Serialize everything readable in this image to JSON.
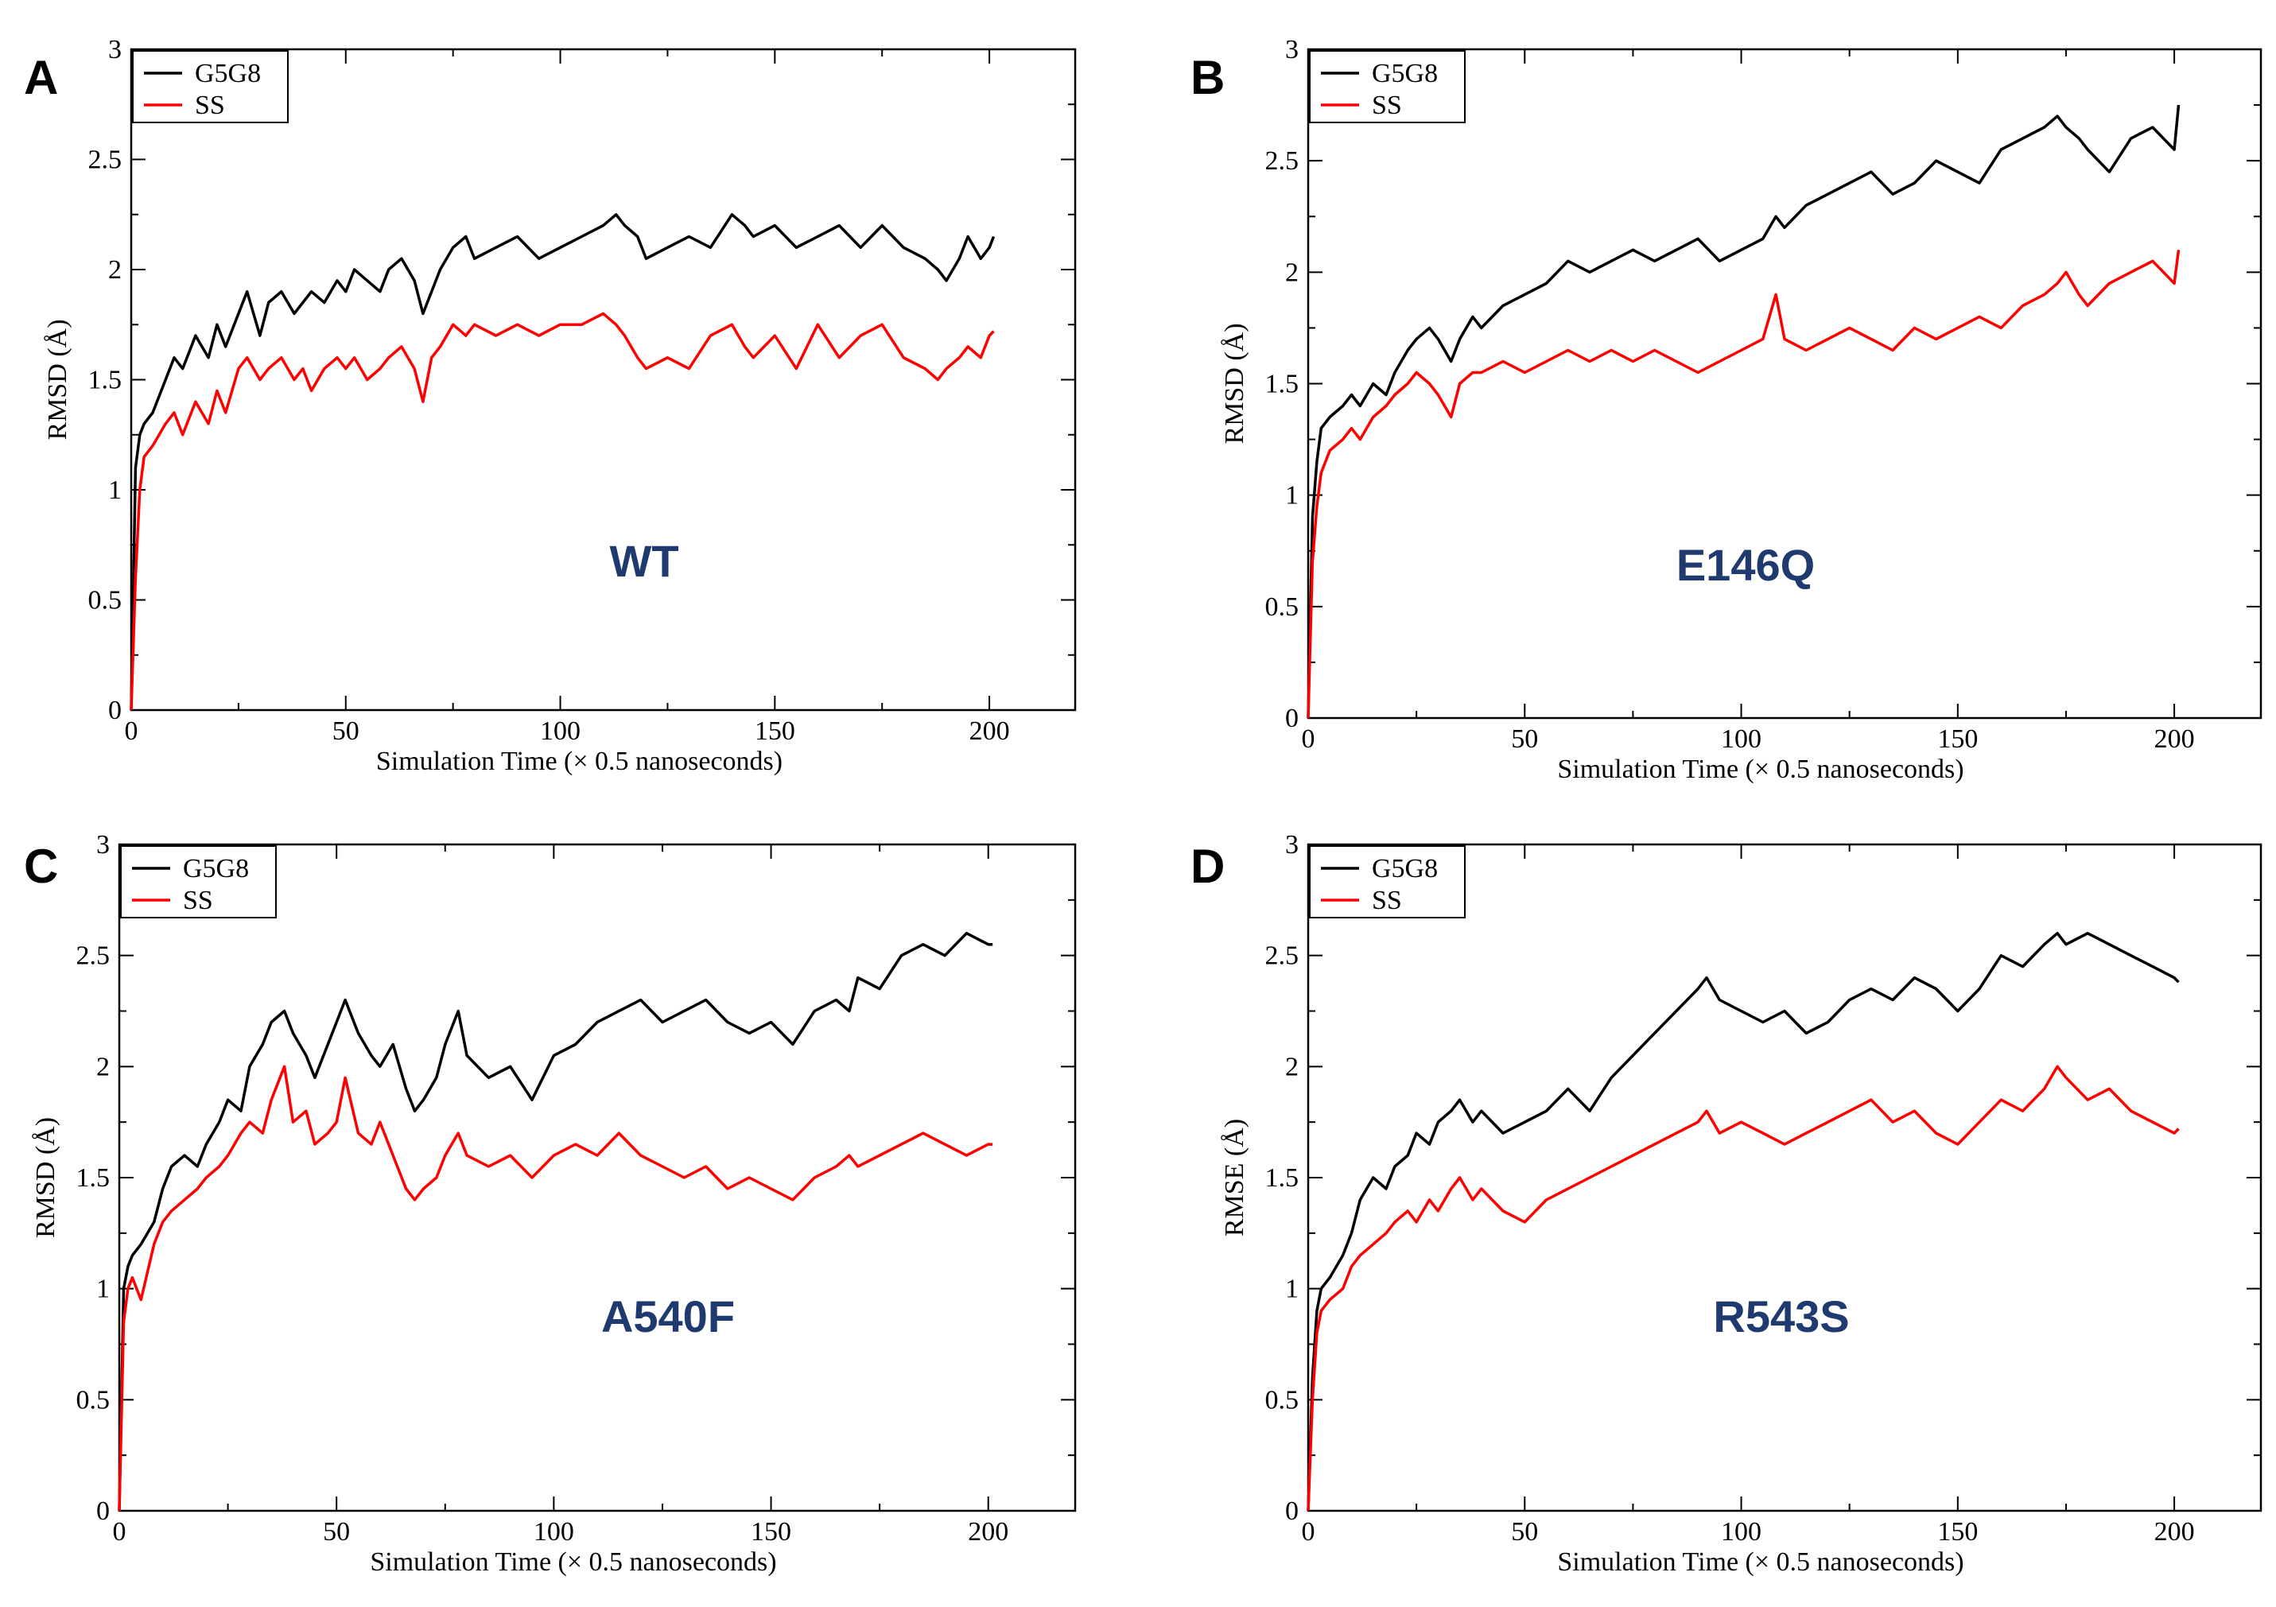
{
  "chart_data": [
    {
      "type": "line",
      "panel_letter": "A",
      "annotation": "WT",
      "xlabel": "Simulation Time  (× 0.5 nanoseconds)",
      "ylabel": "RMSD (Å)",
      "xlim": [
        0,
        220
      ],
      "ylim": [
        0,
        3
      ],
      "xticks": [
        "0",
        "50",
        "100",
        "150",
        "200"
      ],
      "yticks": [
        "0",
        "0.5",
        "1",
        "1.5",
        "2",
        "2.5",
        "3"
      ],
      "legend": {
        "position": "top-left",
        "entries": [
          "G5G8",
          "SS"
        ]
      },
      "series": [
        {
          "name": "G5G8",
          "color": "#000000",
          "x": [
            0,
            1,
            2,
            3,
            5,
            8,
            10,
            12,
            15,
            18,
            20,
            22,
            25,
            27,
            30,
            32,
            35,
            38,
            40,
            42,
            45,
            48,
            50,
            52,
            55,
            58,
            60,
            63,
            66,
            68,
            70,
            72,
            75,
            78,
            80,
            85,
            90,
            95,
            100,
            105,
            110,
            113,
            115,
            118,
            120,
            125,
            130,
            135,
            140,
            143,
            145,
            150,
            155,
            160,
            165,
            170,
            175,
            180,
            185,
            188,
            190,
            193,
            195,
            198,
            200,
            201
          ],
          "values": [
            0,
            1.1,
            1.25,
            1.3,
            1.35,
            1.5,
            1.6,
            1.55,
            1.7,
            1.6,
            1.75,
            1.65,
            1.8,
            1.9,
            1.7,
            1.85,
            1.9,
            1.8,
            1.85,
            1.9,
            1.85,
            1.95,
            1.9,
            2.0,
            1.95,
            1.9,
            2.0,
            2.05,
            1.95,
            1.8,
            1.9,
            2.0,
            2.1,
            2.15,
            2.05,
            2.1,
            2.15,
            2.05,
            2.1,
            2.15,
            2.2,
            2.25,
            2.2,
            2.15,
            2.05,
            2.1,
            2.15,
            2.1,
            2.25,
            2.2,
            2.15,
            2.2,
            2.1,
            2.15,
            2.2,
            2.1,
            2.2,
            2.1,
            2.05,
            2.0,
            1.95,
            2.05,
            2.15,
            2.05,
            2.1,
            2.15
          ]
        },
        {
          "name": "SS",
          "color": "#ff0000",
          "x": [
            0,
            1,
            2,
            3,
            5,
            8,
            10,
            12,
            15,
            18,
            20,
            22,
            25,
            27,
            30,
            32,
            35,
            38,
            40,
            42,
            45,
            48,
            50,
            52,
            55,
            58,
            60,
            63,
            66,
            68,
            70,
            72,
            75,
            78,
            80,
            85,
            90,
            95,
            100,
            105,
            110,
            113,
            115,
            118,
            120,
            125,
            130,
            135,
            140,
            143,
            145,
            150,
            155,
            160,
            165,
            170,
            175,
            180,
            185,
            188,
            190,
            193,
            195,
            198,
            200,
            201
          ],
          "values": [
            0,
            0.6,
            1.0,
            1.15,
            1.2,
            1.3,
            1.35,
            1.25,
            1.4,
            1.3,
            1.45,
            1.35,
            1.55,
            1.6,
            1.5,
            1.55,
            1.6,
            1.5,
            1.55,
            1.45,
            1.55,
            1.6,
            1.55,
            1.6,
            1.5,
            1.55,
            1.6,
            1.65,
            1.55,
            1.4,
            1.6,
            1.65,
            1.75,
            1.7,
            1.75,
            1.7,
            1.75,
            1.7,
            1.75,
            1.75,
            1.8,
            1.75,
            1.7,
            1.6,
            1.55,
            1.6,
            1.55,
            1.7,
            1.75,
            1.65,
            1.6,
            1.7,
            1.55,
            1.75,
            1.6,
            1.7,
            1.75,
            1.6,
            1.55,
            1.5,
            1.55,
            1.6,
            1.65,
            1.6,
            1.7,
            1.72
          ]
        }
      ]
    },
    {
      "type": "line",
      "panel_letter": "B",
      "annotation": "E146Q",
      "xlabel": "Simulation Time (× 0.5 nanoseconds)",
      "ylabel": "RMSD (Å)",
      "xlim": [
        0,
        220
      ],
      "ylim": [
        0,
        3
      ],
      "xticks": [
        "0",
        "50",
        "100",
        "150",
        "200"
      ],
      "yticks": [
        "0",
        "0.5",
        "1",
        "1.5",
        "2",
        "2.5",
        "3"
      ],
      "legend": {
        "position": "top-left",
        "entries": [
          "G5G8",
          "SS"
        ]
      },
      "series": [
        {
          "name": "G5G8",
          "color": "#000000",
          "x": [
            0,
            1,
            2,
            3,
            5,
            8,
            10,
            12,
            15,
            18,
            20,
            23,
            25,
            28,
            30,
            33,
            35,
            38,
            40,
            45,
            50,
            55,
            60,
            65,
            70,
            75,
            80,
            85,
            90,
            95,
            100,
            105,
            108,
            110,
            115,
            120,
            125,
            130,
            135,
            140,
            145,
            150,
            155,
            160,
            165,
            170,
            173,
            175,
            178,
            180,
            185,
            190,
            195,
            200,
            201
          ],
          "values": [
            0,
            0.9,
            1.15,
            1.3,
            1.35,
            1.4,
            1.45,
            1.4,
            1.5,
            1.45,
            1.55,
            1.65,
            1.7,
            1.75,
            1.7,
            1.6,
            1.7,
            1.8,
            1.75,
            1.85,
            1.9,
            1.95,
            2.05,
            2.0,
            2.05,
            2.1,
            2.05,
            2.1,
            2.15,
            2.05,
            2.1,
            2.15,
            2.25,
            2.2,
            2.3,
            2.35,
            2.4,
            2.45,
            2.35,
            2.4,
            2.5,
            2.45,
            2.4,
            2.55,
            2.6,
            2.65,
            2.7,
            2.65,
            2.6,
            2.55,
            2.45,
            2.6,
            2.65,
            2.55,
            2.75
          ]
        },
        {
          "name": "SS",
          "color": "#ff0000",
          "x": [
            0,
            1,
            2,
            3,
            5,
            8,
            10,
            12,
            15,
            18,
            20,
            23,
            25,
            28,
            30,
            33,
            35,
            38,
            40,
            45,
            50,
            55,
            60,
            65,
            70,
            75,
            80,
            85,
            90,
            95,
            100,
            105,
            108,
            110,
            115,
            120,
            125,
            130,
            135,
            140,
            145,
            150,
            155,
            160,
            165,
            170,
            173,
            175,
            178,
            180,
            185,
            190,
            195,
            200,
            201
          ],
          "values": [
            0,
            0.7,
            0.95,
            1.1,
            1.2,
            1.25,
            1.3,
            1.25,
            1.35,
            1.4,
            1.45,
            1.5,
            1.55,
            1.5,
            1.45,
            1.35,
            1.5,
            1.55,
            1.55,
            1.6,
            1.55,
            1.6,
            1.65,
            1.6,
            1.65,
            1.6,
            1.65,
            1.6,
            1.55,
            1.6,
            1.65,
            1.7,
            1.9,
            1.7,
            1.65,
            1.7,
            1.75,
            1.7,
            1.65,
            1.75,
            1.7,
            1.75,
            1.8,
            1.75,
            1.85,
            1.9,
            1.95,
            2.0,
            1.9,
            1.85,
            1.95,
            2.0,
            2.05,
            1.95,
            2.1
          ]
        }
      ]
    },
    {
      "type": "line",
      "panel_letter": "C",
      "annotation": "A540F",
      "xlabel": "Simulation Time (× 0.5 nanoseconds)",
      "ylabel": "RMSD (Å)",
      "xlim": [
        0,
        220
      ],
      "ylim": [
        0,
        3
      ],
      "xticks": [
        "0",
        "50",
        "100",
        "150",
        "200"
      ],
      "yticks": [
        "0",
        "0.5",
        "1",
        "1.5",
        "2",
        "2.5",
        "3"
      ],
      "legend": {
        "position": "top-left",
        "entries": [
          "G5G8",
          "SS"
        ]
      },
      "series": [
        {
          "name": "G5G8",
          "color": "#000000",
          "x": [
            0,
            1,
            2,
            3,
            5,
            8,
            10,
            12,
            15,
            18,
            20,
            23,
            25,
            28,
            30,
            33,
            35,
            38,
            40,
            43,
            45,
            48,
            50,
            52,
            55,
            58,
            60,
            63,
            66,
            68,
            70,
            73,
            75,
            78,
            80,
            85,
            90,
            95,
            100,
            105,
            110,
            115,
            120,
            125,
            130,
            135,
            140,
            145,
            150,
            155,
            160,
            165,
            168,
            170,
            175,
            180,
            185,
            190,
            195,
            200,
            201
          ],
          "values": [
            0,
            1.0,
            1.1,
            1.15,
            1.2,
            1.3,
            1.45,
            1.55,
            1.6,
            1.55,
            1.65,
            1.75,
            1.85,
            1.8,
            2.0,
            2.1,
            2.2,
            2.25,
            2.15,
            2.05,
            1.95,
            2.1,
            2.2,
            2.3,
            2.15,
            2.05,
            2.0,
            2.1,
            1.9,
            1.8,
            1.85,
            1.95,
            2.1,
            2.25,
            2.05,
            1.95,
            2.0,
            1.85,
            2.05,
            2.1,
            2.2,
            2.25,
            2.3,
            2.2,
            2.25,
            2.3,
            2.2,
            2.15,
            2.2,
            2.1,
            2.25,
            2.3,
            2.25,
            2.4,
            2.35,
            2.5,
            2.55,
            2.5,
            2.6,
            2.55,
            2.55
          ]
        },
        {
          "name": "SS",
          "color": "#ff0000",
          "x": [
            0,
            1,
            2,
            3,
            5,
            8,
            10,
            12,
            15,
            18,
            20,
            23,
            25,
            28,
            30,
            33,
            35,
            38,
            40,
            43,
            45,
            48,
            50,
            52,
            55,
            58,
            60,
            63,
            66,
            68,
            70,
            73,
            75,
            78,
            80,
            85,
            90,
            95,
            100,
            105,
            110,
            115,
            120,
            125,
            130,
            135,
            140,
            145,
            150,
            155,
            160,
            165,
            168,
            170,
            175,
            180,
            185,
            190,
            195,
            200,
            201
          ],
          "values": [
            0,
            0.85,
            1.0,
            1.05,
            0.95,
            1.2,
            1.3,
            1.35,
            1.4,
            1.45,
            1.5,
            1.55,
            1.6,
            1.7,
            1.75,
            1.7,
            1.85,
            2.0,
            1.75,
            1.8,
            1.65,
            1.7,
            1.75,
            1.95,
            1.7,
            1.65,
            1.75,
            1.6,
            1.45,
            1.4,
            1.45,
            1.5,
            1.6,
            1.7,
            1.6,
            1.55,
            1.6,
            1.5,
            1.6,
            1.65,
            1.6,
            1.7,
            1.6,
            1.55,
            1.5,
            1.55,
            1.45,
            1.5,
            1.45,
            1.4,
            1.5,
            1.55,
            1.6,
            1.55,
            1.6,
            1.65,
            1.7,
            1.65,
            1.6,
            1.65,
            1.65
          ]
        }
      ]
    },
    {
      "type": "line",
      "panel_letter": "D",
      "annotation": "R543S",
      "xlabel": "Simulation Time (× 0.5 nanoseconds)",
      "ylabel": "RMSE (Å)",
      "xlim": [
        0,
        220
      ],
      "ylim": [
        0,
        3
      ],
      "xticks": [
        "0",
        "50",
        "100",
        "150",
        "200"
      ],
      "yticks": [
        "0",
        "0.5",
        "1",
        "1.5",
        "2",
        "2.5",
        "3"
      ],
      "legend": {
        "position": "top-left",
        "entries": [
          "G5G8",
          "SS"
        ]
      },
      "series": [
        {
          "name": "G5G8",
          "color": "#000000",
          "x": [
            0,
            1,
            2,
            3,
            5,
            8,
            10,
            12,
            15,
            18,
            20,
            23,
            25,
            28,
            30,
            33,
            35,
            38,
            40,
            45,
            50,
            55,
            60,
            65,
            70,
            75,
            80,
            85,
            90,
            92,
            95,
            100,
            105,
            110,
            115,
            120,
            125,
            130,
            135,
            140,
            145,
            150,
            155,
            160,
            165,
            170,
            173,
            175,
            180,
            185,
            190,
            195,
            200,
            201
          ],
          "values": [
            0,
            0.6,
            0.9,
            1.0,
            1.05,
            1.15,
            1.25,
            1.4,
            1.5,
            1.45,
            1.55,
            1.6,
            1.7,
            1.65,
            1.75,
            1.8,
            1.85,
            1.75,
            1.8,
            1.7,
            1.75,
            1.8,
            1.9,
            1.8,
            1.95,
            2.05,
            2.15,
            2.25,
            2.35,
            2.4,
            2.3,
            2.25,
            2.2,
            2.25,
            2.15,
            2.2,
            2.3,
            2.35,
            2.3,
            2.4,
            2.35,
            2.25,
            2.35,
            2.5,
            2.45,
            2.55,
            2.6,
            2.55,
            2.6,
            2.55,
            2.5,
            2.45,
            2.4,
            2.38
          ]
        },
        {
          "name": "SS",
          "color": "#ff0000",
          "x": [
            0,
            1,
            2,
            3,
            5,
            8,
            10,
            12,
            15,
            18,
            20,
            23,
            25,
            28,
            30,
            33,
            35,
            38,
            40,
            45,
            50,
            55,
            60,
            65,
            70,
            75,
            80,
            85,
            90,
            92,
            95,
            100,
            105,
            110,
            115,
            120,
            125,
            130,
            135,
            140,
            145,
            150,
            155,
            160,
            165,
            170,
            173,
            175,
            180,
            185,
            190,
            195,
            200,
            201
          ],
          "values": [
            0,
            0.5,
            0.8,
            0.9,
            0.95,
            1.0,
            1.1,
            1.15,
            1.2,
            1.25,
            1.3,
            1.35,
            1.3,
            1.4,
            1.35,
            1.45,
            1.5,
            1.4,
            1.45,
            1.35,
            1.3,
            1.4,
            1.45,
            1.5,
            1.55,
            1.6,
            1.65,
            1.7,
            1.75,
            1.8,
            1.7,
            1.75,
            1.7,
            1.65,
            1.7,
            1.75,
            1.8,
            1.85,
            1.75,
            1.8,
            1.7,
            1.65,
            1.75,
            1.85,
            1.8,
            1.9,
            2.0,
            1.95,
            1.85,
            1.9,
            1.8,
            1.75,
            1.7,
            1.72
          ]
        }
      ]
    }
  ]
}
